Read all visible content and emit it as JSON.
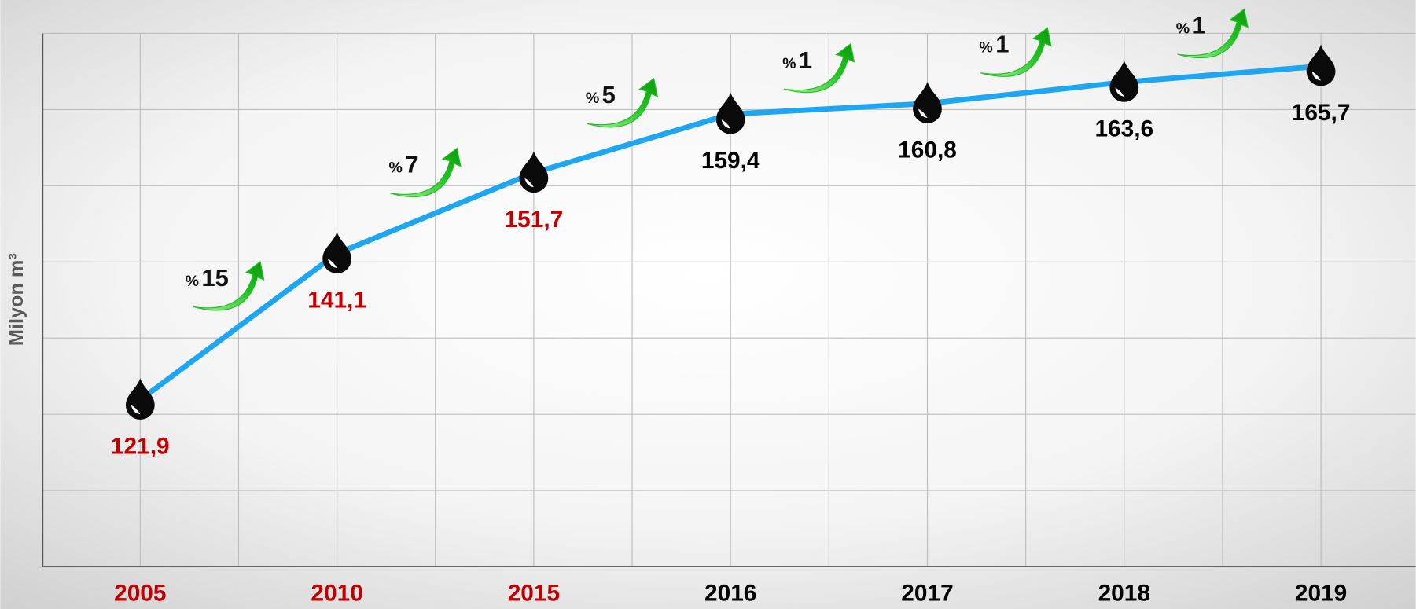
{
  "chart_data": {
    "type": "line",
    "y_axis_label": "Milyon m³",
    "categories": [
      "2005",
      "2010",
      "2015",
      "2016",
      "2017",
      "2018",
      "2019"
    ],
    "series": [
      {
        "color": "#1ea7f0",
        "values": [
          121.9,
          141.1,
          151.7,
          159.4,
          160.8,
          163.6,
          165.7
        ],
        "value_labels": [
          "121,9",
          "141,1",
          "151,7",
          "159,4",
          "160,8",
          "163,6",
          "165,7"
        ]
      }
    ],
    "label_colors": [
      "#c00000",
      "#c00000",
      "#c00000",
      "#000000",
      "#000000",
      "#000000",
      "#000000"
    ],
    "annotations": [
      "%15",
      "%7",
      "%5",
      "%1",
      "%1",
      "%1"
    ],
    "annotation_color": "#22c022",
    "ylim": [
      100,
      170
    ],
    "yticks": [
      100,
      110,
      120,
      130,
      140,
      150,
      160,
      170
    ],
    "grid": true
  }
}
